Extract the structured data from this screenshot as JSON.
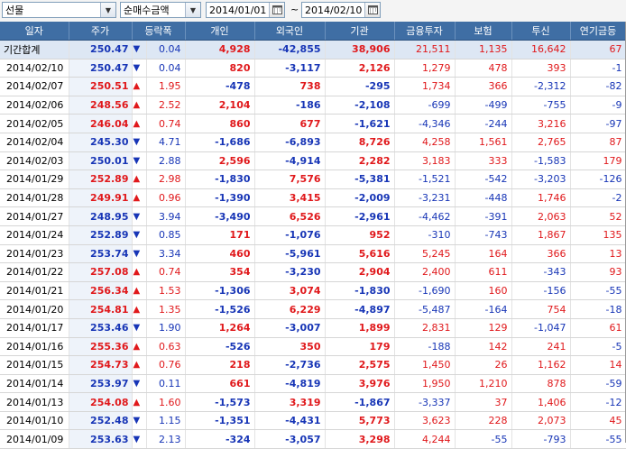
{
  "toolbar": {
    "market": "선물",
    "data_type": "순매수금액",
    "start_date": "2014/01/01",
    "end_date": "2014/02/10",
    "range_separator": "~"
  },
  "columns": [
    "일자",
    "주가",
    "등락폭",
    "개인",
    "외국인",
    "기관",
    "금융투자",
    "보험",
    "투신",
    "연기금등"
  ],
  "colors": {
    "header_bg": "#3f6ea4",
    "up": "#e0181b",
    "down": "#1735b6"
  },
  "total_row": {
    "date": "기간합계",
    "price": "250.47",
    "dir": "down",
    "change": "0.04",
    "individual": "4,928",
    "foreign": "-42,855",
    "institution": "38,906",
    "fin_invest": "21,511",
    "insurance": "1,135",
    "trust": "16,642",
    "pension": "67"
  },
  "rows": [
    {
      "date": "2014/02/10",
      "price": "250.47",
      "dir": "down",
      "change": "0.04",
      "individual": "820",
      "foreign": "-3,117",
      "institution": "2,126",
      "fin_invest": "1,279",
      "insurance": "478",
      "trust": "393",
      "pension": "-1"
    },
    {
      "date": "2014/02/07",
      "price": "250.51",
      "dir": "up",
      "change": "1.95",
      "individual": "-478",
      "foreign": "738",
      "institution": "-295",
      "fin_invest": "1,734",
      "insurance": "366",
      "trust": "-2,312",
      "pension": "-82"
    },
    {
      "date": "2014/02/06",
      "price": "248.56",
      "dir": "up",
      "change": "2.52",
      "individual": "2,104",
      "foreign": "-186",
      "institution": "-2,108",
      "fin_invest": "-699",
      "insurance": "-499",
      "trust": "-755",
      "pension": "-9"
    },
    {
      "date": "2014/02/05",
      "price": "246.04",
      "dir": "up",
      "change": "0.74",
      "individual": "860",
      "foreign": "677",
      "institution": "-1,621",
      "fin_invest": "-4,346",
      "insurance": "-244",
      "trust": "3,216",
      "pension": "-97"
    },
    {
      "date": "2014/02/04",
      "price": "245.30",
      "dir": "down",
      "change": "4.71",
      "individual": "-1,686",
      "foreign": "-6,893",
      "institution": "8,726",
      "fin_invest": "4,258",
      "insurance": "1,561",
      "trust": "2,765",
      "pension": "87"
    },
    {
      "date": "2014/02/03",
      "price": "250.01",
      "dir": "down",
      "change": "2.88",
      "individual": "2,596",
      "foreign": "-4,914",
      "institution": "2,282",
      "fin_invest": "3,183",
      "insurance": "333",
      "trust": "-1,583",
      "pension": "179"
    },
    {
      "date": "2014/01/29",
      "price": "252.89",
      "dir": "up",
      "change": "2.98",
      "individual": "-1,830",
      "foreign": "7,576",
      "institution": "-5,381",
      "fin_invest": "-1,521",
      "insurance": "-542",
      "trust": "-3,203",
      "pension": "-126"
    },
    {
      "date": "2014/01/28",
      "price": "249.91",
      "dir": "up",
      "change": "0.96",
      "individual": "-1,390",
      "foreign": "3,415",
      "institution": "-2,009",
      "fin_invest": "-3,231",
      "insurance": "-448",
      "trust": "1,746",
      "pension": "-2"
    },
    {
      "date": "2014/01/27",
      "price": "248.95",
      "dir": "down",
      "change": "3.94",
      "individual": "-3,490",
      "foreign": "6,526",
      "institution": "-2,961",
      "fin_invest": "-4,462",
      "insurance": "-391",
      "trust": "2,063",
      "pension": "52"
    },
    {
      "date": "2014/01/24",
      "price": "252.89",
      "dir": "down",
      "change": "0.85",
      "individual": "171",
      "foreign": "-1,076",
      "institution": "952",
      "fin_invest": "-310",
      "insurance": "-743",
      "trust": "1,867",
      "pension": "135"
    },
    {
      "date": "2014/01/23",
      "price": "253.74",
      "dir": "down",
      "change": "3.34",
      "individual": "460",
      "foreign": "-5,961",
      "institution": "5,616",
      "fin_invest": "5,245",
      "insurance": "164",
      "trust": "366",
      "pension": "13"
    },
    {
      "date": "2014/01/22",
      "price": "257.08",
      "dir": "up",
      "change": "0.74",
      "individual": "354",
      "foreign": "-3,230",
      "institution": "2,904",
      "fin_invest": "2,400",
      "insurance": "611",
      "trust": "-343",
      "pension": "93"
    },
    {
      "date": "2014/01/21",
      "price": "256.34",
      "dir": "up",
      "change": "1.53",
      "individual": "-1,306",
      "foreign": "3,074",
      "institution": "-1,830",
      "fin_invest": "-1,690",
      "insurance": "160",
      "trust": "-156",
      "pension": "-55"
    },
    {
      "date": "2014/01/20",
      "price": "254.81",
      "dir": "up",
      "change": "1.35",
      "individual": "-1,526",
      "foreign": "6,229",
      "institution": "-4,897",
      "fin_invest": "-5,487",
      "insurance": "-164",
      "trust": "754",
      "pension": "-18"
    },
    {
      "date": "2014/01/17",
      "price": "253.46",
      "dir": "down",
      "change": "1.90",
      "individual": "1,264",
      "foreign": "-3,007",
      "institution": "1,899",
      "fin_invest": "2,831",
      "insurance": "129",
      "trust": "-1,047",
      "pension": "61"
    },
    {
      "date": "2014/01/16",
      "price": "255.36",
      "dir": "up",
      "change": "0.63",
      "individual": "-526",
      "foreign": "350",
      "institution": "179",
      "fin_invest": "-188",
      "insurance": "142",
      "trust": "241",
      "pension": "-5"
    },
    {
      "date": "2014/01/15",
      "price": "254.73",
      "dir": "up",
      "change": "0.76",
      "individual": "218",
      "foreign": "-2,736",
      "institution": "2,575",
      "fin_invest": "1,450",
      "insurance": "26",
      "trust": "1,162",
      "pension": "14"
    },
    {
      "date": "2014/01/14",
      "price": "253.97",
      "dir": "down",
      "change": "0.11",
      "individual": "661",
      "foreign": "-4,819",
      "institution": "3,976",
      "fin_invest": "1,950",
      "insurance": "1,210",
      "trust": "878",
      "pension": "-59"
    },
    {
      "date": "2014/01/13",
      "price": "254.08",
      "dir": "up",
      "change": "1.60",
      "individual": "-1,573",
      "foreign": "3,319",
      "institution": "-1,867",
      "fin_invest": "-3,337",
      "insurance": "37",
      "trust": "1,406",
      "pension": "-12"
    },
    {
      "date": "2014/01/10",
      "price": "252.48",
      "dir": "down",
      "change": "1.15",
      "individual": "-1,351",
      "foreign": "-4,431",
      "institution": "5,773",
      "fin_invest": "3,623",
      "insurance": "228",
      "trust": "2,073",
      "pension": "45"
    },
    {
      "date": "2014/01/09",
      "price": "253.63",
      "dir": "down",
      "change": "2.13",
      "individual": "-324",
      "foreign": "-3,057",
      "institution": "3,298",
      "fin_invest": "4,244",
      "insurance": "-55",
      "trust": "-793",
      "pension": "-55"
    }
  ]
}
